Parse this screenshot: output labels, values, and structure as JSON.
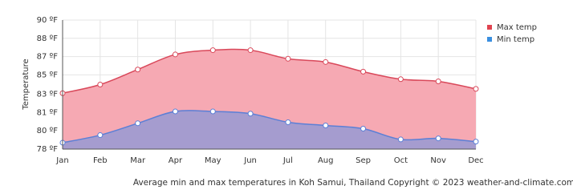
{
  "chart_data": {
    "type": "area",
    "y_label": "Temperature",
    "footer": "Average min and max temperatures in Koh Samui, Thailand   Copyright © 2023  weather-and-climate.com",
    "categories": [
      "Jan",
      "Feb",
      "Mar",
      "Apr",
      "May",
      "Jun",
      "Jul",
      "Aug",
      "Sep",
      "Oct",
      "Nov",
      "Dec"
    ],
    "series": [
      {
        "name": "Max temp",
        "color": "#e0434f",
        "values": [
          83.2,
          84.0,
          85.4,
          86.8,
          87.2,
          87.2,
          86.4,
          86.1,
          85.2,
          84.5,
          84.3,
          83.6
        ]
      },
      {
        "name": "Min temp",
        "color": "#3a8fe0",
        "values": [
          78.6,
          79.3,
          80.4,
          81.5,
          81.5,
          81.3,
          80.5,
          80.2,
          79.9,
          78.9,
          79.0,
          78.7
        ]
      }
    ],
    "ylim": [
      78,
      90
    ],
    "yticks": [
      {
        "value": 78,
        "label": "78 ºF"
      },
      {
        "value": 79.7,
        "label": "80 ºF"
      },
      {
        "value": 81.4,
        "label": "81 ºF"
      },
      {
        "value": 83.1,
        "label": "83 ºF"
      },
      {
        "value": 84.9,
        "label": "85 ºF"
      },
      {
        "value": 86.6,
        "label": "87 ºF"
      },
      {
        "value": 88.3,
        "label": "88 ºF"
      },
      {
        "value": 90,
        "label": "90 ºF"
      }
    ],
    "grid": true
  }
}
